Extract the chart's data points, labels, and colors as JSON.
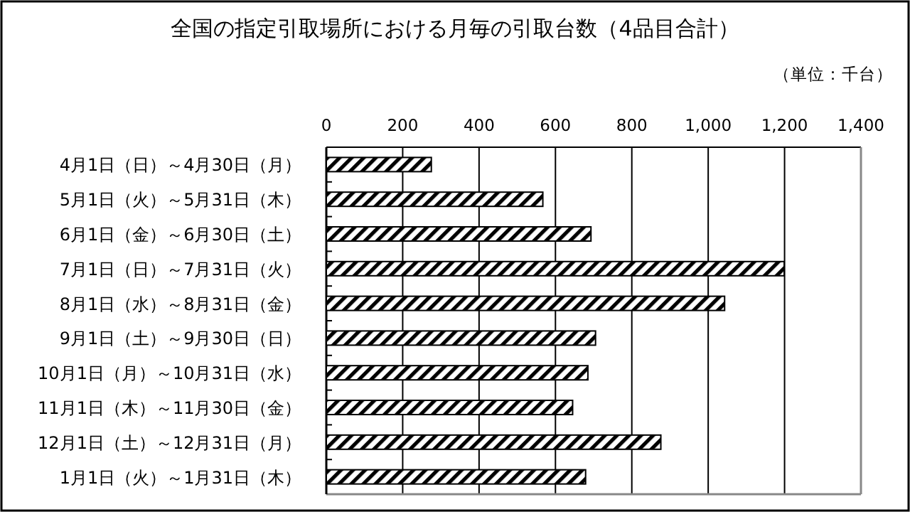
{
  "chart_data": {
    "type": "bar",
    "orientation": "horizontal",
    "title": "全国の指定引取場所における月毎の引取台数（4品目合計）",
    "annotations": [
      "（単位：千台）"
    ],
    "categories": [
      "4月1日（日）～4月30日（月）",
      "5月1日（火）～5月31日（木）",
      "6月1日（金）～6月30日（土）",
      "7月1日（日）～7月31日（火）",
      "8月1日（水）～8月31日（金）",
      "9月1日（土）～9月30日（日）",
      "10月1日（月）～10月31日（水）",
      "11月1日（木）～11月30日（金）",
      "12月1日（土）～12月31日（月）",
      "1月1日（火）～1月31日（木）"
    ],
    "values": [
      275,
      567,
      693,
      1199,
      1043,
      705,
      685,
      645,
      876,
      679
    ],
    "color": "#000000",
    "xlim": [
      0,
      1400
    ],
    "xticks": [
      0,
      200,
      400,
      600,
      800,
      {
        "value": 1000,
        "label": "1,000"
      },
      {
        "value": 1200,
        "label": "1,200"
      },
      {
        "value": 1400,
        "label": "1,400"
      }
    ],
    "grid": "x"
  }
}
